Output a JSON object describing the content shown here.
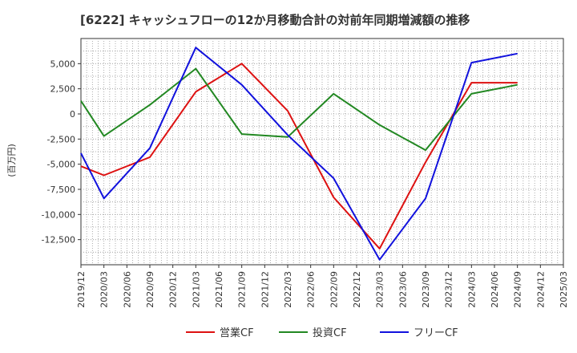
{
  "chart_data": {
    "type": "line",
    "title": "[6222]  キャッシュフローの12か月移動合計の対前年同期増減額の推移",
    "ylabel": "(百万円)",
    "xlabel": "",
    "x_labels": [
      "2019/12",
      "2020/03",
      "2020/06",
      "2020/09",
      "2020/12",
      "2021/03",
      "2021/06",
      "2021/09",
      "2021/12",
      "2022/03",
      "2022/06",
      "2022/09",
      "2022/12",
      "2023/03",
      "2023/06",
      "2023/09",
      "2023/12",
      "2024/03",
      "2024/06",
      "2024/09",
      "2024/12",
      "2025/03"
    ],
    "ylim": [
      -15000,
      7500
    ],
    "y_ticks": [
      5000,
      2500,
      0,
      -2500,
      -5000,
      -7500,
      -10000,
      -12500
    ],
    "y_tick_labels": [
      "5,000",
      "2,500",
      "0",
      "-2,500",
      "-5,000",
      "-7,500",
      "-10,000",
      "-12,500"
    ],
    "grid": true,
    "legend_position": "bottom",
    "series": [
      {
        "name": "営業CF",
        "color": "#dd1111",
        "points": [
          [
            "2019/12",
            -5200
          ],
          [
            "2020/03",
            -6100
          ],
          [
            "2020/09",
            -4300
          ],
          [
            "2021/03",
            2200
          ],
          [
            "2021/09",
            5000
          ],
          [
            "2022/03",
            300
          ],
          [
            "2022/09",
            -8300
          ],
          [
            "2023/03",
            -13400
          ],
          [
            "2023/09",
            -4800
          ],
          [
            "2024/03",
            3100
          ],
          [
            "2024/09",
            3100
          ]
        ]
      },
      {
        "name": "投資CF",
        "color": "#228822",
        "points": [
          [
            "2019/12",
            1300
          ],
          [
            "2020/03",
            -2200
          ],
          [
            "2020/09",
            900
          ],
          [
            "2021/03",
            4500
          ],
          [
            "2021/09",
            -2000
          ],
          [
            "2022/03",
            -2300
          ],
          [
            "2022/09",
            2000
          ],
          [
            "2023/03",
            -1100
          ],
          [
            "2023/09",
            -3600
          ],
          [
            "2024/03",
            2000
          ],
          [
            "2024/09",
            2900
          ]
        ]
      },
      {
        "name": "フリーCF",
        "color": "#1111dd",
        "points": [
          [
            "2019/12",
            -3900
          ],
          [
            "2020/03",
            -8400
          ],
          [
            "2020/09",
            -3400
          ],
          [
            "2021/03",
            6600
          ],
          [
            "2021/09",
            2900
          ],
          [
            "2022/03",
            -2100
          ],
          [
            "2022/09",
            -6400
          ],
          [
            "2023/03",
            -14500
          ],
          [
            "2023/09",
            -8400
          ],
          [
            "2024/03",
            5100
          ],
          [
            "2024/09",
            6000
          ]
        ]
      }
    ]
  }
}
